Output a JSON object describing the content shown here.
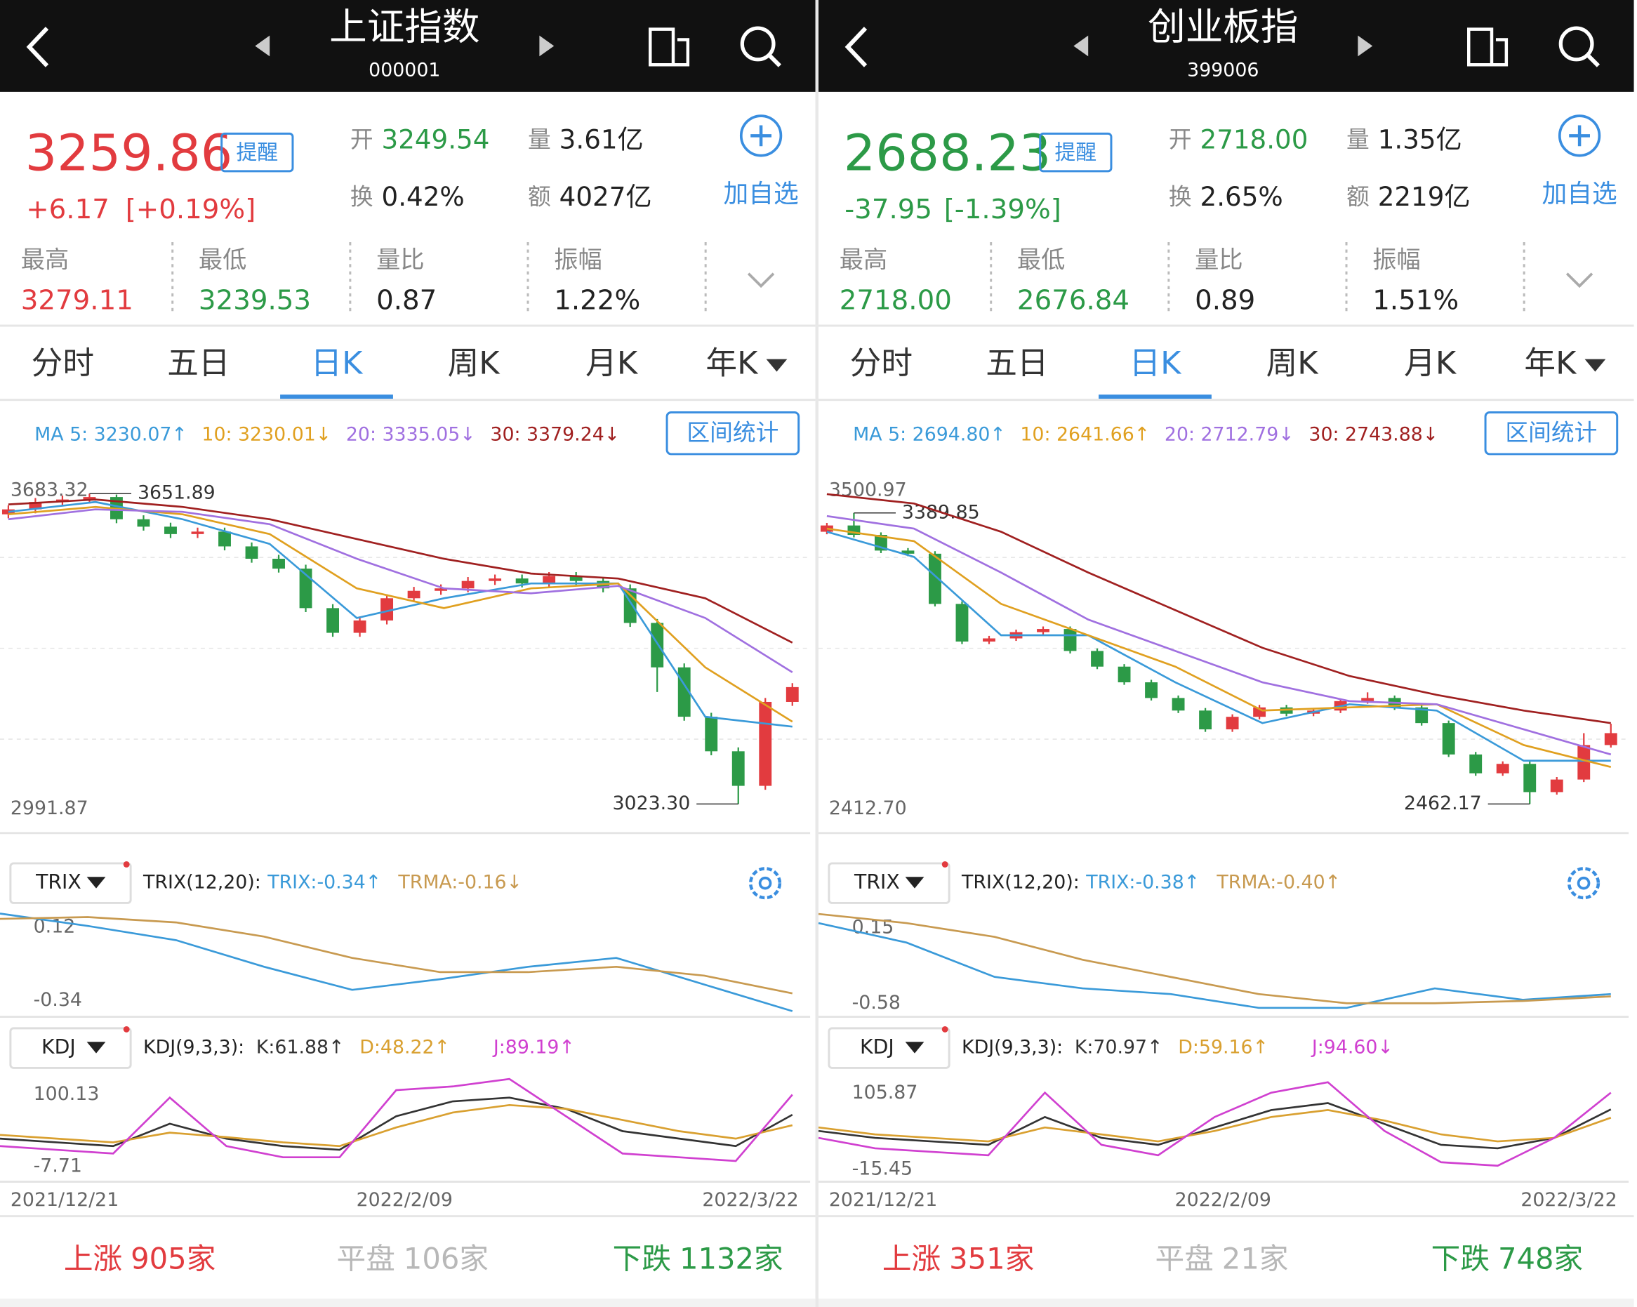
{
  "panels": [
    {
      "title": "上证指数",
      "code": "000001",
      "price": "3259.86",
      "change": "+6.17",
      "change_pct": "[+0.19%]",
      "color": "#e23b3f",
      "alert": "提醒",
      "quote": [
        {
          "label": "开",
          "value": "3249.54",
          "color": "#2c9a47"
        },
        {
          "label": "量",
          "value": "3.61亿",
          "color": "#222222"
        },
        {
          "label": "换",
          "value": "0.42%",
          "color": "#222222"
        },
        {
          "label": "额",
          "value": "4027亿",
          "color": "#222222"
        }
      ],
      "add_watch": "加自选",
      "stats": [
        {
          "label": "最高",
          "value": "3279.11",
          "color": "#e23b3f"
        },
        {
          "label": "最低",
          "value": "3239.53",
          "color": "#2c9a47"
        },
        {
          "label": "量比",
          "value": "0.87",
          "color": "#222222"
        },
        {
          "label": "振幅",
          "value": "1.22%",
          "color": "#222222"
        }
      ],
      "tabs": [
        "分时",
        "五日",
        "日K",
        "周K",
        "月K",
        "年K"
      ],
      "active_tab": 2,
      "ma_labels": [
        "MA 5: 3230.07↑",
        "10: 3230.01↓",
        "20: 3335.05↓",
        "30: 3379.24↓"
      ],
      "range_stats": "区间统计",
      "price_chart": {
        "ylim": [
          2991.87,
          3683.32
        ],
        "yticks": [
          3683.32,
          2991.87
        ],
        "max": 3651.89,
        "min": {
          "value": 3023.3,
          "label": "3023.30"
        },
        "candles": [
          [
            3610,
            3628,
            3602,
            3620
          ],
          [
            3620,
            3643,
            3612,
            3635
          ],
          [
            3635,
            3648,
            3627,
            3640
          ],
          [
            3640,
            3651.89,
            3632,
            3645
          ],
          [
            3645,
            3650,
            3592,
            3600
          ],
          [
            3600,
            3608,
            3577,
            3585
          ],
          [
            3585,
            3593,
            3562,
            3570
          ],
          [
            3570,
            3583,
            3562,
            3575
          ],
          [
            3575,
            3583,
            3537,
            3545
          ],
          [
            3545,
            3553,
            3512,
            3520
          ],
          [
            3520,
            3528,
            3492,
            3500
          ],
          [
            3500,
            3508,
            3412,
            3420
          ],
          [
            3420,
            3428,
            3362,
            3370
          ],
          [
            3370,
            3403,
            3362,
            3395
          ],
          [
            3395,
            3448,
            3387,
            3440
          ],
          [
            3440,
            3463,
            3432,
            3455
          ],
          [
            3455,
            3468,
            3447,
            3460
          ],
          [
            3460,
            3483,
            3452,
            3475
          ],
          [
            3475,
            3488,
            3467,
            3480
          ],
          [
            3480,
            3488,
            3462,
            3470
          ],
          [
            3470,
            3493,
            3462,
            3485
          ],
          [
            3485,
            3493,
            3467,
            3475
          ],
          [
            3475,
            3483,
            3452,
            3460
          ],
          [
            3460,
            3468,
            3382,
            3390
          ],
          [
            3390,
            3398,
            3250,
            3300
          ],
          [
            3300,
            3308,
            3192,
            3200
          ],
          [
            3200,
            3208,
            3122,
            3130
          ],
          [
            3130,
            3138,
            3023.3,
            3060
          ],
          [
            3060,
            3238,
            3052,
            3230
          ],
          [
            3230,
            3268,
            3222,
            3260
          ]
        ],
        "ma_lines": [
          {
            "color": "#3a9ad9",
            "values": [
              3615,
              3635,
              3600,
              3550,
              3400,
              3440,
              3470,
              3470,
              3200,
              3180
            ]
          },
          {
            "color": "#e0a020",
            "values": [
              3610,
              3625,
              3610,
              3570,
              3460,
              3420,
              3460,
              3470,
              3300,
              3190
            ]
          },
          {
            "color": "#a070e0",
            "values": [
              3600,
              3620,
              3615,
              3590,
              3520,
              3460,
              3450,
              3465,
              3400,
              3290
            ]
          },
          {
            "color": "#a02020",
            "values": [
              3630,
              3640,
              3625,
              3600,
              3560,
              3520,
              3490,
              3480,
              3440,
              3350
            ]
          }
        ]
      },
      "trix": {
        "indicator": "TRIX",
        "params": "TRIX(12,20):",
        "labels": [
          "TRIX:-0.34↑",
          "TRMA:-0.16↓"
        ],
        "ylim": [
          -0.42,
          0.18
        ],
        "yticks": [
          0.12,
          -0.34
        ],
        "lines": [
          {
            "color": "#3a9ad9",
            "values": [
              0.15,
              0.08,
              0.0,
              -0.15,
              -0.28,
              -0.22,
              -0.15,
              -0.1,
              -0.25,
              -0.4
            ]
          },
          {
            "color": "#c89a50",
            "values": [
              0.12,
              0.13,
              0.1,
              0.02,
              -0.1,
              -0.18,
              -0.18,
              -0.15,
              -0.2,
              -0.3
            ]
          }
        ]
      },
      "kdj": {
        "indicator": "KDJ",
        "params": "KDJ(9,3,3):",
        "labels": [
          "K:61.88↑",
          "D:48.22↑",
          "J:89.19↑"
        ],
        "ylim": [
          -25,
          115
        ],
        "yticks": [
          100.13,
          -7.71
        ],
        "lines": [
          {
            "color": "#333333",
            "values": [
              30,
              25,
              20,
              50,
              30,
              20,
              15,
              60,
              80,
              85,
              70,
              40,
              30,
              20,
              62
            ]
          },
          {
            "color": "#d9a030",
            "values": [
              35,
              30,
              25,
              38,
              32,
              25,
              20,
              45,
              65,
              75,
              70,
              55,
              40,
              30,
              48
            ]
          },
          {
            "color": "#d040d0",
            "values": [
              20,
              15,
              10,
              85,
              20,
              5,
              5,
              95,
              100,
              110,
              60,
              10,
              5,
              0,
              89
            ]
          }
        ]
      },
      "dates": [
        "2021/12/21",
        "2022/2/09",
        "2022/3/22"
      ],
      "breadth": [
        {
          "label": "上涨",
          "count": "905家",
          "color": "#e23b3f"
        },
        {
          "label": "平盘",
          "count": "106家",
          "color": "#b8b8b8"
        },
        {
          "label": "下跌",
          "count": "1132家",
          "color": "#2c9a47"
        }
      ]
    },
    {
      "title": "创业板指",
      "code": "399006",
      "price": "2688.23",
      "change": "-37.95",
      "change_pct": "[-1.39%]",
      "color": "#2c9a47",
      "alert": "提醒",
      "quote": [
        {
          "label": "开",
          "value": "2718.00",
          "color": "#2c9a47"
        },
        {
          "label": "量",
          "value": "1.35亿",
          "color": "#222222"
        },
        {
          "label": "换",
          "value": "2.65%",
          "color": "#222222"
        },
        {
          "label": "额",
          "value": "2219亿",
          "color": "#222222"
        }
      ],
      "add_watch": "加自选",
      "stats": [
        {
          "label": "最高",
          "value": "2718.00",
          "color": "#2c9a47"
        },
        {
          "label": "最低",
          "value": "2676.84",
          "color": "#2c9a47"
        },
        {
          "label": "量比",
          "value": "0.89",
          "color": "#222222"
        },
        {
          "label": "振幅",
          "value": "1.51%",
          "color": "#222222"
        }
      ],
      "tabs": [
        "分时",
        "五日",
        "日K",
        "周K",
        "月K",
        "年K"
      ],
      "active_tab": 2,
      "ma_labels": [
        "MA 5: 2694.80↑",
        "10: 2641.66↑",
        "20: 2712.79↓",
        "30: 2743.88↓"
      ],
      "range_stats": "区间统计",
      "price_chart": {
        "ylim": [
          {
            "value": 2412.7,
            "label": "2412.70"
          },
          3500.97
        ],
        "yticks": [
          3500.97,
          {
            "value": 2412.7,
            "label": "2412.70"
          }
        ],
        "max": 3389.85,
        "min": 2462.17,
        "candles": [
          [
            3330,
            3358,
            3322,
            3350
          ],
          [
            3350,
            3389.85,
            3312,
            3320
          ],
          [
            3320,
            3328,
            3262,
            3270
          ],
          [
            3270,
            3278,
            3252,
            3260
          ],
          [
            3260,
            3268,
            3092,
            3100
          ],
          [
            3100,
            3108,
            2972,
            2980
          ],
          [
            2980,
            2998,
            2972,
            2990
          ],
          [
            2990,
            3018,
            2982,
            3010
          ],
          [
            3010,
            3028,
            3002,
            3020
          ],
          [
            3020,
            3028,
            2942,
            2950
          ],
          [
            2950,
            2958,
            2892,
            2900
          ],
          [
            2900,
            2908,
            2842,
            2850
          ],
          [
            2850,
            2858,
            2792,
            2800
          ],
          [
            2800,
            2808,
            2752,
            2760
          ],
          [
            2760,
            2768,
            2692,
            2700
          ],
          [
            2700,
            2748,
            2692,
            2740
          ],
          [
            2740,
            2778,
            2732,
            2770
          ],
          [
            2770,
            2778,
            2742,
            2750
          ],
          [
            2750,
            2768,
            2742,
            2760
          ],
          [
            2760,
            2798,
            2752,
            2790
          ],
          [
            2790,
            2818,
            2782,
            2800
          ],
          [
            2800,
            2808,
            2762,
            2770
          ],
          [
            2770,
            2778,
            2712,
            2720
          ],
          [
            2720,
            2728,
            2612,
            2620
          ],
          [
            2620,
            2628,
            2552,
            2560
          ],
          [
            2560,
            2598,
            2552,
            2590
          ],
          [
            2590,
            2598,
            2462.17,
            2500
          ],
          [
            2500,
            2548,
            2492,
            2540
          ],
          [
            2540,
            2688,
            2532,
            2650
          ],
          [
            2650,
            2718,
            2642,
            2688
          ]
        ],
        "ma_lines": [
          {
            "color": "#3a9ad9",
            "values": [
              3330,
              3250,
              3000,
              3000,
              2850,
              2720,
              2780,
              2760,
              2600,
              2600
            ]
          },
          {
            "color": "#e0a020",
            "values": [
              3340,
              3300,
              3100,
              3000,
              2900,
              2760,
              2770,
              2780,
              2650,
              2580
            ]
          },
          {
            "color": "#a070e0",
            "values": [
              3380,
              3340,
              3200,
              3050,
              2950,
              2850,
              2790,
              2780,
              2700,
              2620
            ]
          },
          {
            "color": "#a02020",
            "values": [
              3450,
              3420,
              3330,
              3200,
              3080,
              2960,
              2870,
              2810,
              2760,
              2720
            ]
          }
        ]
      },
      "trix": {
        "indicator": "TRIX",
        "params": "TRIX(12,20):",
        "labels": [
          "TRIX:-0.38↑",
          "TRMA:-0.40↑"
        ],
        "ylim": [
          -0.68,
          0.25
        ],
        "yticks": [
          0.15,
          -0.58
        ],
        "lines": [
          {
            "color": "#3a9ad9",
            "values": [
              0.12,
              -0.05,
              -0.35,
              -0.45,
              -0.5,
              -0.62,
              -0.62,
              -0.45,
              -0.55,
              -0.5
            ]
          },
          {
            "color": "#c89a50",
            "values": [
              0.2,
              0.12,
              0.0,
              -0.2,
              -0.35,
              -0.5,
              -0.58,
              -0.58,
              -0.56,
              -0.52
            ]
          }
        ]
      },
      "kdj": {
        "indicator": "KDJ",
        "params": "KDJ(9,3,3):",
        "labels": [
          "K:70.97↑",
          "D:59.16↑",
          "J:94.60↓"
        ],
        "ylim": [
          -30,
          120
        ],
        "yticks": [
          105.87,
          -15.45
        ],
        "lines": [
          {
            "color": "#333333",
            "values": [
              40,
              30,
              25,
              20,
              60,
              30,
              20,
              45,
              70,
              80,
              50,
              20,
              15,
              30,
              71
            ]
          },
          {
            "color": "#d9a030",
            "values": [
              45,
              35,
              30,
              25,
              45,
              35,
              25,
              40,
              60,
              70,
              55,
              35,
              25,
              30,
              59
            ]
          },
          {
            "color": "#d040d0",
            "values": [
              30,
              15,
              10,
              5,
              95,
              20,
              5,
              60,
              95,
              110,
              40,
              -5,
              -10,
              30,
              95
            ]
          }
        ]
      },
      "dates": [
        "2021/12/21",
        "2022/2/09",
        "2022/3/22"
      ],
      "breadth": [
        {
          "label": "上涨",
          "count": "351家",
          "color": "#e23b3f"
        },
        {
          "label": "平盘",
          "count": "21家",
          "color": "#b8b8b8"
        },
        {
          "label": "下跌",
          "count": "748家",
          "color": "#2c9a47"
        }
      ]
    }
  ]
}
